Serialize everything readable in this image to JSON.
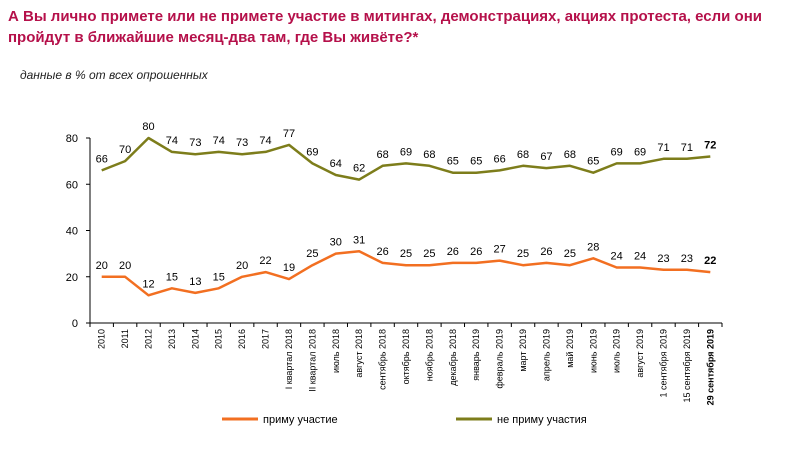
{
  "header": {
    "title": "А Вы лично примете или не примете участие в митингах, демонстрациях, акциях протеста, если они пройдут в ближайшие месяц-два там, где Вы живёте?*",
    "subtitle": "данные в % от всех опрошенных"
  },
  "chart_data": {
    "type": "line",
    "ylim": [
      0,
      80
    ],
    "yticks": [
      0,
      20,
      40,
      60,
      80
    ],
    "categories": [
      "2010",
      "2011",
      "2012",
      "2013",
      "2014",
      "2015",
      "2016",
      "2017",
      "I квартал 2018",
      "II квартал 2018",
      "июль 2018",
      "август 2018",
      "сентябрь 2018",
      "октябрь 2018",
      "ноябрь 2018",
      "декабрь 2018",
      "январь 2019",
      "февраль 2019",
      "март 2019",
      "апрель 2019",
      "май 2019",
      "июнь 2019",
      "июль 2019",
      "август 2019",
      "1 сентября 2019",
      "15 сентября 2019",
      "29 сентября 2019"
    ],
    "series": [
      {
        "name": "приму участие",
        "color": "#f26f21",
        "values": [
          20,
          20,
          12,
          15,
          13,
          15,
          20,
          22,
          19,
          25,
          30,
          31,
          26,
          25,
          25,
          26,
          26,
          27,
          25,
          26,
          25,
          28,
          24,
          24,
          23,
          23,
          22
        ]
      },
      {
        "name": "не приму участия",
        "color": "#7d7d1b",
        "values": [
          66,
          70,
          80,
          74,
          73,
          74,
          73,
          74,
          77,
          69,
          64,
          62,
          68,
          69,
          68,
          65,
          65,
          66,
          68,
          67,
          68,
          65,
          69,
          69,
          71,
          71,
          72
        ]
      }
    ],
    "grid": false,
    "legend": "bottom"
  }
}
